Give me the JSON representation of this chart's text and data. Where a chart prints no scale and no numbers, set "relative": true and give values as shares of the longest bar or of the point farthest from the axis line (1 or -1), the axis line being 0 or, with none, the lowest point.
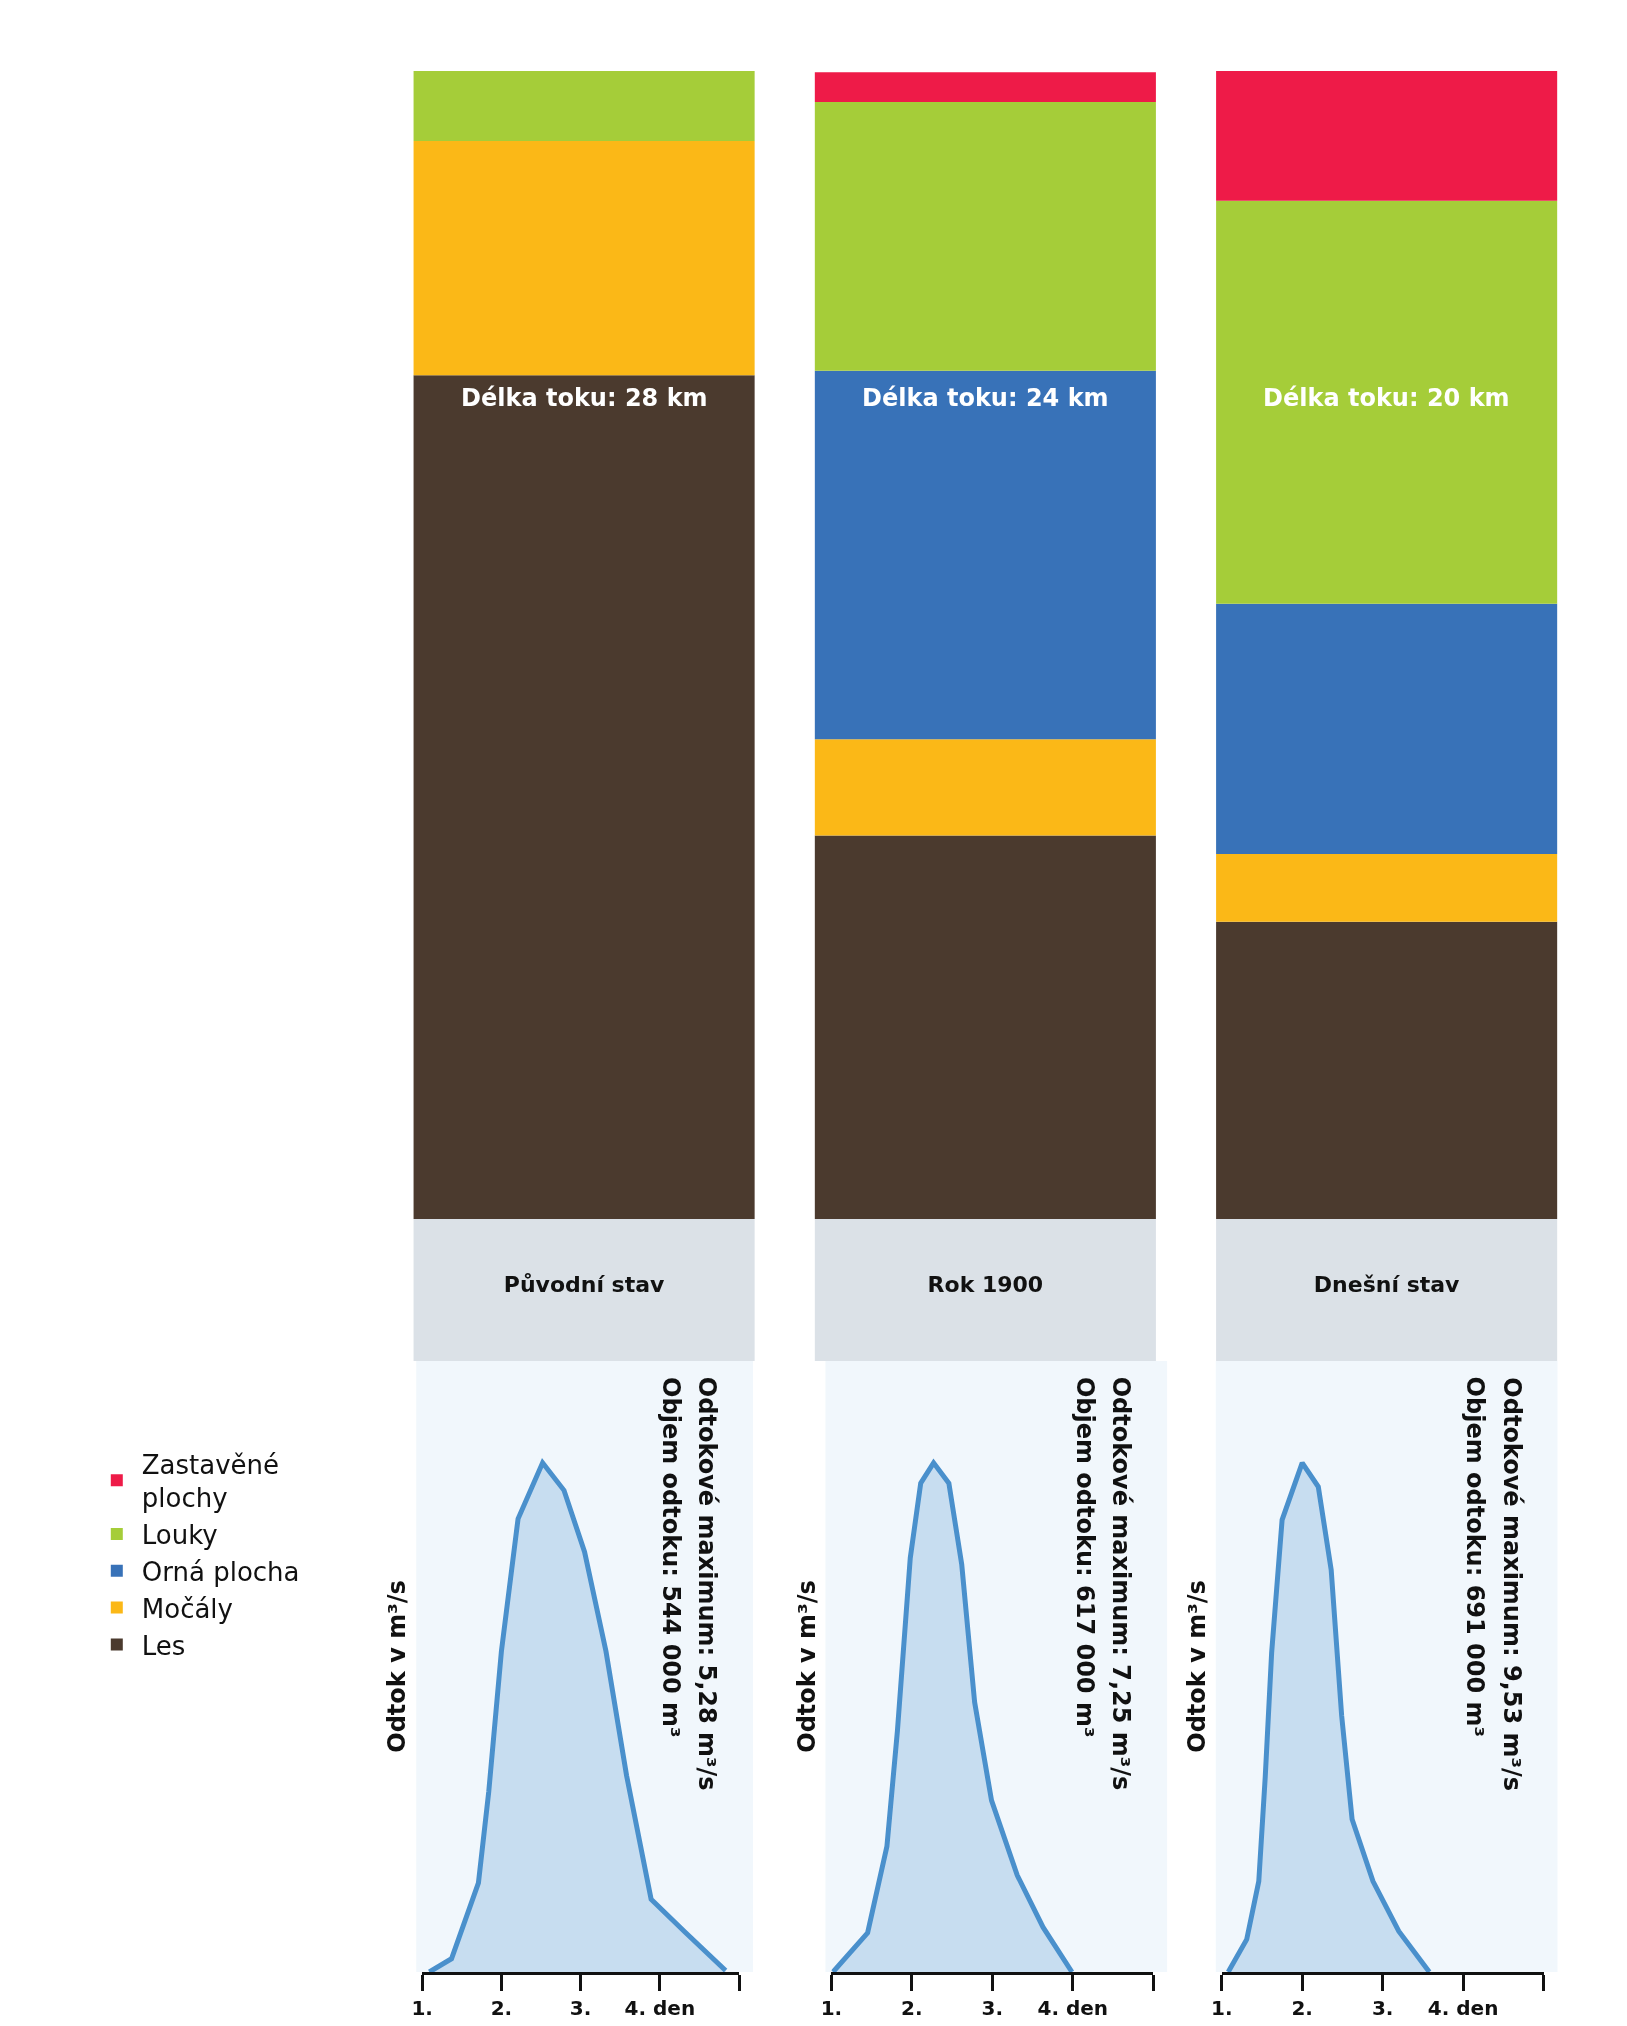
{
  "chart_data": [
    {
      "type": "bar",
      "stacked": true,
      "relative": true,
      "legend": "left",
      "categories": [
        "Původní stav",
        "Rok 1900",
        "Dnešní stav"
      ],
      "series": [
        {
          "name": "Les",
          "color": "#4b3a2e",
          "values": [
            0.735,
            0.334,
            0.259
          ]
        },
        {
          "name": "Močály",
          "color": "#fbb817",
          "values": [
            0.204,
            0.084,
            0.059
          ]
        },
        {
          "name": "Orná plocha",
          "color": "#3872b8",
          "values": [
            0,
            0.321,
            0.218
          ]
        },
        {
          "name": "Louky",
          "color": "#a5cd39",
          "values": [
            0.061,
            0.234,
            0.351
          ]
        },
        {
          "name": "Zastavěné plochy",
          "color": "#ee1b48",
          "values": [
            0,
            0.026,
            0.113
          ]
        }
      ],
      "annotations": [
        "Délka toku: 28 km",
        "Délka toku: 24 km",
        "Délka toku: 20 km"
      ]
    },
    {
      "type": "area",
      "relative": true,
      "tick_labels": "x",
      "ylabel": "Odtok v m³/s",
      "xlim": [
        1,
        5
      ],
      "xticks": [
        {
          "value": 1,
          "label": "1."
        },
        {
          "value": 2,
          "label": "2."
        },
        {
          "value": 3,
          "label": "3."
        },
        {
          "value": 4,
          "label": "4. den"
        },
        {
          "value": 5,
          "label": null
        }
      ],
      "series": [
        {
          "color": "#4a90cc",
          "x": [
            1.09,
            1.37,
            1.71,
            1.84,
            2.0,
            2.21,
            2.52,
            2.79,
            3.05,
            3.32,
            3.58,
            3.89,
            4.32,
            4.83
          ],
          "values": [
            0,
            0.026,
            0.175,
            0.354,
            0.63,
            0.89,
            1.0,
            0.946,
            0.825,
            0.63,
            0.386,
            0.143,
            0.078,
            0.003
          ]
        }
      ],
      "annotations": [
        "Odtokové maximum: 5,28 m³/s",
        "Objem odtoku: 544 000 m³"
      ]
    },
    {
      "type": "area",
      "relative": true,
      "tick_labels": "x",
      "ylabel": "Odtok v m³/s",
      "xlim": [
        1,
        5
      ],
      "xticks": [
        {
          "value": 1,
          "label": "1."
        },
        {
          "value": 2,
          "label": "2."
        },
        {
          "value": 3,
          "label": "3."
        },
        {
          "value": 4,
          "label": "4. den"
        },
        {
          "value": 5,
          "label": null
        }
      ],
      "series": [
        {
          "color": "#4a90cc",
          "x": [
            1.02,
            1.45,
            1.69,
            1.82,
            1.98,
            2.11,
            2.27,
            2.46,
            2.62,
            2.78,
            2.99,
            3.31,
            3.63,
            3.99
          ],
          "values": [
            0,
            0.077,
            0.247,
            0.473,
            0.813,
            0.96,
            1.0,
            0.96,
            0.8,
            0.53,
            0.337,
            0.19,
            0.088,
            0
          ]
        }
      ],
      "annotations": [
        "Odtokové maximum: 7,25 m³/s",
        "Objem odtoku: 617 000 m³"
      ]
    },
    {
      "type": "area",
      "relative": true,
      "tick_labels": "x",
      "ylabel": "Odtok v m³/s",
      "xlim": [
        1,
        5
      ],
      "xticks": [
        {
          "value": 1,
          "label": "1."
        },
        {
          "value": 2,
          "label": "2."
        },
        {
          "value": 3,
          "label": "3."
        },
        {
          "value": 4,
          "label": "4. den"
        },
        {
          "value": 5,
          "label": null
        }
      ],
      "series": [
        {
          "color": "#4a90cc",
          "x": [
            1.08,
            1.31,
            1.46,
            1.54,
            1.62,
            1.75,
            2.0,
            2.2,
            2.36,
            2.49,
            2.62,
            2.88,
            3.2,
            3.58
          ],
          "values": [
            0,
            0.064,
            0.178,
            0.382,
            0.627,
            0.888,
            1.0,
            0.953,
            0.79,
            0.504,
            0.3,
            0.178,
            0.08,
            0
          ]
        }
      ],
      "annotations": [
        "Odtokové maximum: 9,53 m³/s",
        "Objem odtoku: 691 000 m³"
      ]
    }
  ]
}
